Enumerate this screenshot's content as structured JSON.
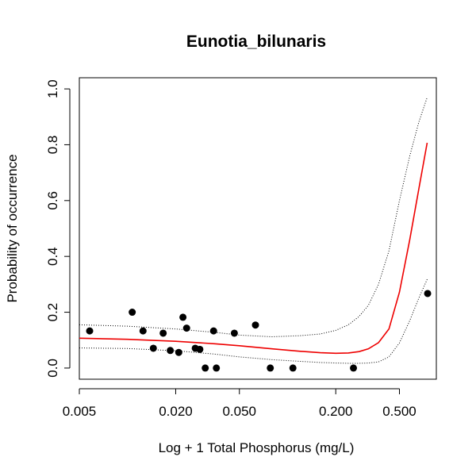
{
  "chart_data": {
    "type": "scatter",
    "title": "Eunotia_bilunaris",
    "xlabel": "Log + 1 Total Phosphorus (mg/L)",
    "ylabel": "Probability of occurrence",
    "x_scale": "log",
    "xlim": [
      0.005,
      0.85
    ],
    "ylim": [
      -0.04,
      1.04
    ],
    "x_ticks": [
      {
        "value": 0.005,
        "label": "0.005"
      },
      {
        "value": 0.02,
        "label": "0.020"
      },
      {
        "value": 0.05,
        "label": "0.050"
      },
      {
        "value": 0.2,
        "label": "0.200"
      },
      {
        "value": 0.5,
        "label": "0.500"
      }
    ],
    "y_ticks": [
      {
        "value": 0.0,
        "label": "0.0"
      },
      {
        "value": 0.2,
        "label": "0.2"
      },
      {
        "value": 0.4,
        "label": "0.4"
      },
      {
        "value": 0.6,
        "label": "0.6"
      },
      {
        "value": 0.8,
        "label": "0.8"
      },
      {
        "value": 1.0,
        "label": "1.0"
      }
    ],
    "grid": false,
    "points": {
      "x": [
        0.0058,
        0.0107,
        0.0125,
        0.0145,
        0.0167,
        0.0185,
        0.0209,
        0.0222,
        0.0234,
        0.0265,
        0.0283,
        0.0306,
        0.0345,
        0.0359,
        0.0465,
        0.063,
        0.078,
        0.108,
        0.258,
        0.75
      ],
      "y": [
        0.133,
        0.2,
        0.133,
        0.071,
        0.125,
        0.063,
        0.056,
        0.182,
        0.143,
        0.071,
        0.067,
        0.0,
        0.133,
        0.0,
        0.125,
        0.154,
        0.0,
        0.0,
        0.0,
        0.267
      ]
    },
    "fit": {
      "color": "#ee0000",
      "x": [
        0.005,
        0.01,
        0.02,
        0.035,
        0.05,
        0.08,
        0.12,
        0.16,
        0.2,
        0.24,
        0.28,
        0.32,
        0.37,
        0.43,
        0.5,
        0.58,
        0.66,
        0.745
      ],
      "y": [
        0.107,
        0.103,
        0.096,
        0.087,
        0.08,
        0.069,
        0.06,
        0.055,
        0.053,
        0.054,
        0.059,
        0.069,
        0.091,
        0.14,
        0.272,
        0.46,
        0.64,
        0.807
      ]
    },
    "ci_upper": {
      "color": "#000000",
      "x": [
        0.005,
        0.01,
        0.02,
        0.035,
        0.05,
        0.08,
        0.12,
        0.16,
        0.2,
        0.24,
        0.28,
        0.32,
        0.37,
        0.43,
        0.5,
        0.58,
        0.66,
        0.745
      ],
      "y": [
        0.155,
        0.15,
        0.14,
        0.128,
        0.118,
        0.112,
        0.116,
        0.122,
        0.135,
        0.155,
        0.185,
        0.225,
        0.3,
        0.42,
        0.6,
        0.76,
        0.88,
        0.97
      ]
    },
    "ci_lower": {
      "color": "#000000",
      "x": [
        0.005,
        0.01,
        0.02,
        0.035,
        0.05,
        0.08,
        0.12,
        0.16,
        0.2,
        0.24,
        0.28,
        0.32,
        0.37,
        0.43,
        0.5,
        0.58,
        0.66,
        0.745
      ],
      "y": [
        0.072,
        0.07,
        0.062,
        0.05,
        0.04,
        0.03,
        0.024,
        0.02,
        0.018,
        0.017,
        0.017,
        0.018,
        0.022,
        0.04,
        0.09,
        0.17,
        0.25,
        0.318
      ]
    }
  }
}
